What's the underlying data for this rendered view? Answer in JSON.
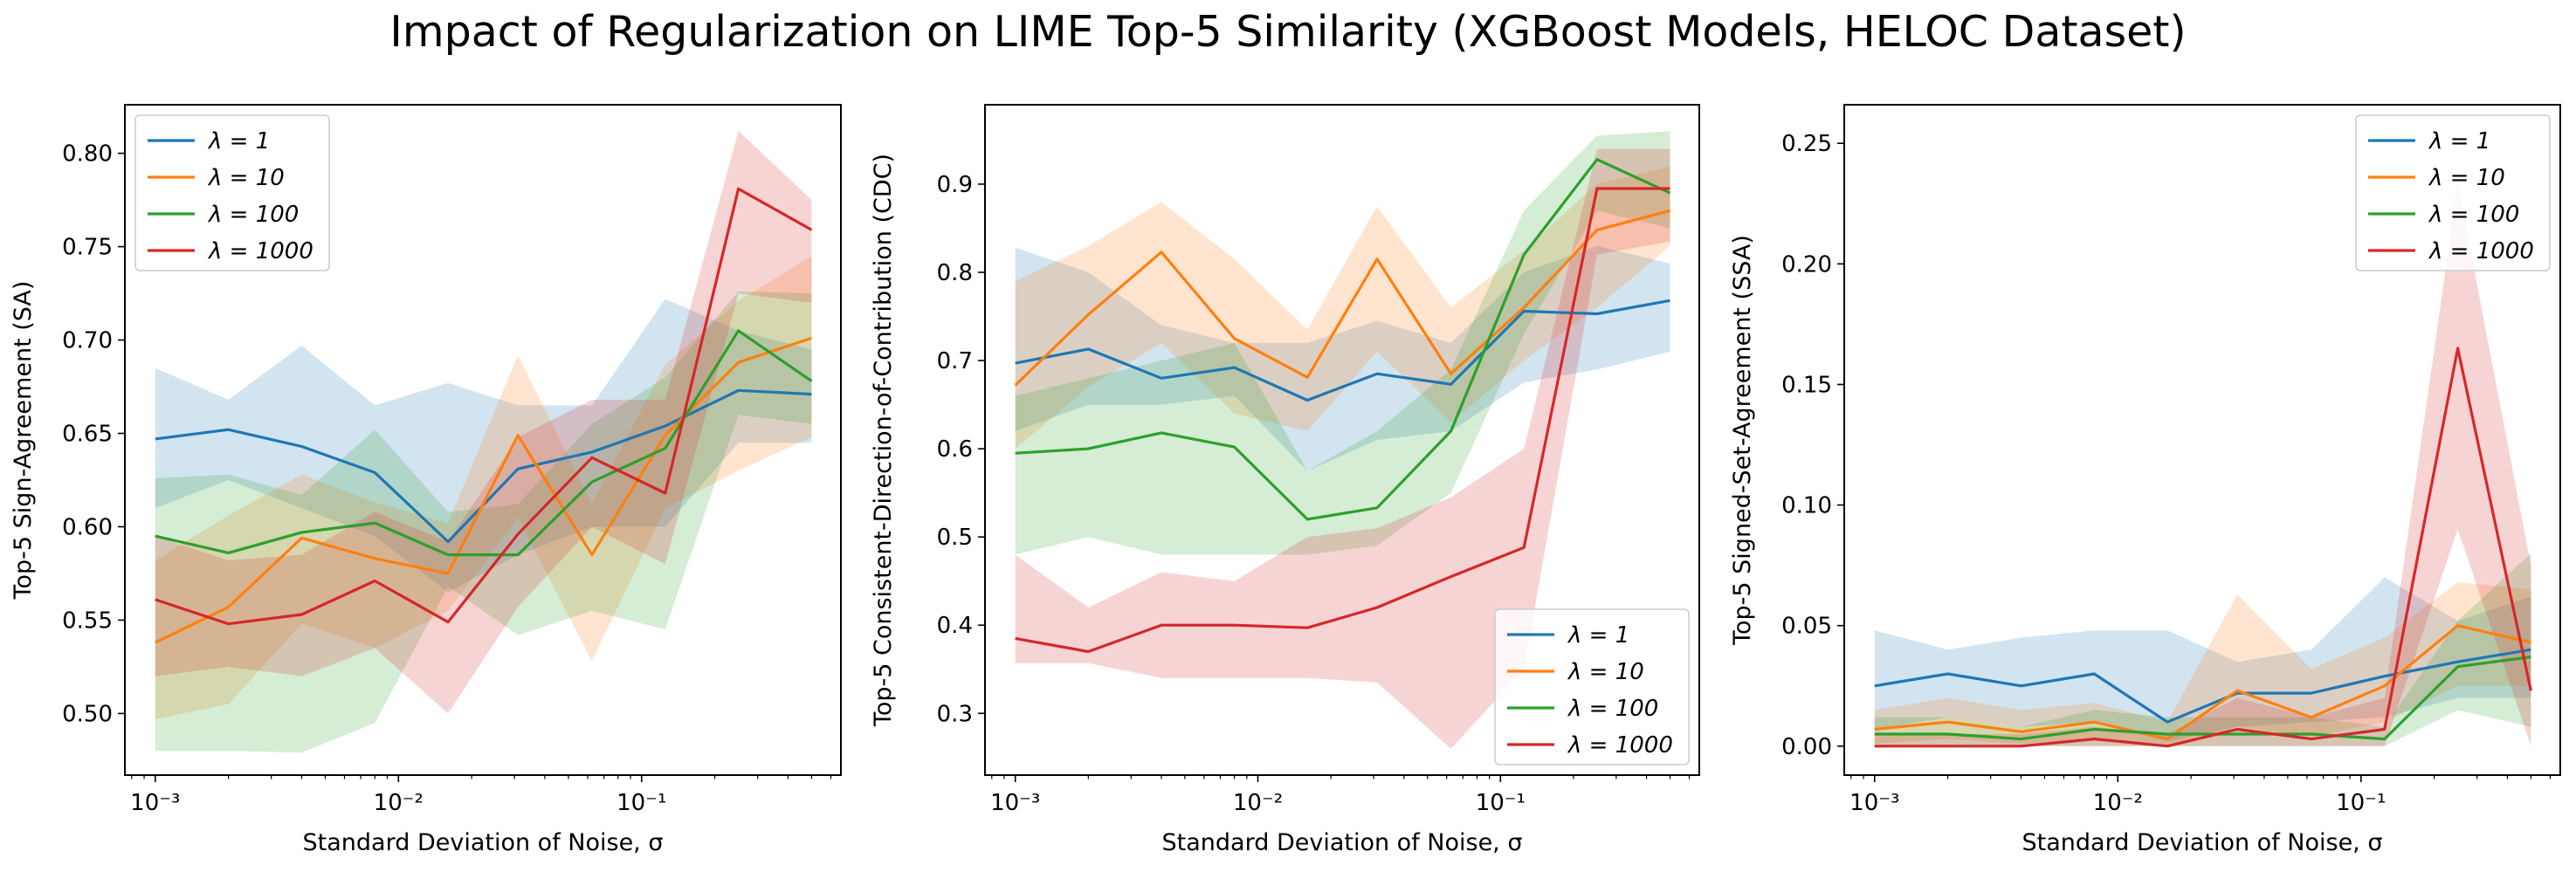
{
  "title": "Impact of Regularization on LIME Top-5 Similarity (XGBoost Models, HELOC Dataset)",
  "colors": {
    "lambda_1": "#1f77b4",
    "lambda_10": "#ff7f0e",
    "lambda_100": "#2ca02c",
    "lambda_1000": "#d62728"
  },
  "chart_data": [
    {
      "type": "line",
      "title": "",
      "xlabel": "Standard Deviation of Noise, σ",
      "ylabel": "Top-5 Sign-Agreement (SA)",
      "xscale": "log",
      "xlim": [
        0.00075,
        0.66
      ],
      "ylim": [
        0.467,
        0.826
      ],
      "x": [
        0.001,
        0.002,
        0.004,
        0.008,
        0.016,
        0.031,
        0.0625,
        0.125,
        0.25,
        0.5
      ],
      "xticks": [
        {
          "value": 0.001,
          "label": "10⁻³"
        },
        {
          "value": 0.01,
          "label": "10⁻²"
        },
        {
          "value": 0.1,
          "label": "10⁻¹"
        }
      ],
      "yticks": [
        {
          "value": 0.5,
          "label": "0.50"
        },
        {
          "value": 0.55,
          "label": "0.55"
        },
        {
          "value": 0.6,
          "label": "0.60"
        },
        {
          "value": 0.65,
          "label": "0.65"
        },
        {
          "value": 0.7,
          "label": "0.70"
        },
        {
          "value": 0.75,
          "label": "0.75"
        },
        {
          "value": 0.8,
          "label": "0.80"
        }
      ],
      "legend_position": "upper left",
      "series": [
        {
          "name": "λ = 1",
          "color": "#1f77b4",
          "values": [
            0.647,
            0.652,
            0.643,
            0.629,
            0.592,
            0.631,
            0.64,
            0.654,
            0.673,
            0.671
          ],
          "lower": [
            0.61,
            0.625,
            0.61,
            0.595,
            0.565,
            0.585,
            0.6,
            0.6,
            0.645,
            0.645
          ],
          "upper": [
            0.685,
            0.668,
            0.697,
            0.665,
            0.677,
            0.665,
            0.665,
            0.722,
            0.705,
            0.695
          ]
        },
        {
          "name": "λ = 10",
          "color": "#ff7f0e",
          "values": [
            0.538,
            0.557,
            0.594,
            0.583,
            0.575,
            0.649,
            0.585,
            0.649,
            0.688,
            0.701
          ],
          "lower": [
            0.497,
            0.505,
            0.548,
            0.535,
            0.555,
            0.605,
            0.528,
            0.61,
            0.63,
            0.648
          ],
          "upper": [
            0.582,
            0.606,
            0.628,
            0.613,
            0.602,
            0.692,
            0.612,
            0.687,
            0.721,
            0.745
          ]
        },
        {
          "name": "λ = 100",
          "color": "#2ca02c",
          "values": [
            0.595,
            0.586,
            0.597,
            0.602,
            0.585,
            0.585,
            0.624,
            0.642,
            0.705,
            0.678
          ],
          "lower": [
            0.48,
            0.48,
            0.479,
            0.495,
            0.568,
            0.542,
            0.555,
            0.545,
            0.66,
            0.655
          ],
          "upper": [
            0.626,
            0.628,
            0.617,
            0.652,
            0.608,
            0.612,
            0.655,
            0.68,
            0.726,
            0.725
          ]
        },
        {
          "name": "λ = 1000",
          "color": "#d62728",
          "values": [
            0.561,
            0.548,
            0.553,
            0.571,
            0.549,
            0.596,
            0.637,
            0.618,
            0.781,
            0.759
          ],
          "lower": [
            0.52,
            0.525,
            0.52,
            0.535,
            0.5,
            0.557,
            0.6,
            0.58,
            0.725,
            0.72
          ],
          "upper": [
            0.595,
            0.582,
            0.585,
            0.608,
            0.592,
            0.648,
            0.668,
            0.668,
            0.812,
            0.775
          ]
        }
      ]
    },
    {
      "type": "line",
      "title": "",
      "xlabel": "Standard Deviation of Noise, σ",
      "ylabel": "Top-5 Consistent-Direction-of-Contribution (CDC)",
      "xscale": "log",
      "xlim": [
        0.00075,
        0.66
      ],
      "ylim": [
        0.23,
        0.99
      ],
      "x": [
        0.001,
        0.002,
        0.004,
        0.008,
        0.016,
        0.031,
        0.0625,
        0.125,
        0.25,
        0.5
      ],
      "xticks": [
        {
          "value": 0.001,
          "label": "10⁻³"
        },
        {
          "value": 0.01,
          "label": "10⁻²"
        },
        {
          "value": 0.1,
          "label": "10⁻¹"
        }
      ],
      "yticks": [
        {
          "value": 0.3,
          "label": "0.3"
        },
        {
          "value": 0.4,
          "label": "0.4"
        },
        {
          "value": 0.5,
          "label": "0.5"
        },
        {
          "value": 0.6,
          "label": "0.6"
        },
        {
          "value": 0.7,
          "label": "0.7"
        },
        {
          "value": 0.8,
          "label": "0.8"
        },
        {
          "value": 0.9,
          "label": "0.9"
        }
      ],
      "legend_position": "lower right",
      "series": [
        {
          "name": "λ = 1",
          "color": "#1f77b4",
          "values": [
            0.697,
            0.713,
            0.68,
            0.692,
            0.655,
            0.685,
            0.673,
            0.756,
            0.753,
            0.768
          ],
          "lower": [
            0.62,
            0.65,
            0.65,
            0.66,
            0.575,
            0.61,
            0.62,
            0.675,
            0.69,
            0.71
          ],
          "upper": [
            0.828,
            0.8,
            0.74,
            0.72,
            0.72,
            0.745,
            0.72,
            0.8,
            0.83,
            0.81
          ]
        },
        {
          "name": "λ = 10",
          "color": "#ff7f0e",
          "values": [
            0.672,
            0.752,
            0.823,
            0.725,
            0.681,
            0.815,
            0.685,
            0.76,
            0.848,
            0.87
          ],
          "lower": [
            0.6,
            0.67,
            0.72,
            0.64,
            0.62,
            0.71,
            0.63,
            0.7,
            0.76,
            0.83
          ],
          "upper": [
            0.79,
            0.83,
            0.88,
            0.815,
            0.735,
            0.875,
            0.76,
            0.825,
            0.9,
            0.92
          ]
        },
        {
          "name": "λ = 100",
          "color": "#2ca02c",
          "values": [
            0.595,
            0.6,
            0.618,
            0.602,
            0.52,
            0.533,
            0.62,
            0.82,
            0.928,
            0.89
          ],
          "lower": [
            0.48,
            0.5,
            0.48,
            0.48,
            0.48,
            0.49,
            0.55,
            0.73,
            0.87,
            0.85
          ],
          "upper": [
            0.66,
            0.68,
            0.7,
            0.72,
            0.575,
            0.62,
            0.69,
            0.87,
            0.955,
            0.96
          ]
        },
        {
          "name": "λ = 1000",
          "color": "#d62728",
          "values": [
            0.385,
            0.37,
            0.4,
            0.4,
            0.397,
            0.42,
            0.455,
            0.488,
            0.895,
            0.895
          ],
          "lower": [
            0.357,
            0.357,
            0.34,
            0.34,
            0.34,
            0.335,
            0.26,
            0.35,
            0.82,
            0.835
          ],
          "upper": [
            0.48,
            0.42,
            0.46,
            0.45,
            0.5,
            0.51,
            0.545,
            0.6,
            0.94,
            0.94
          ]
        }
      ]
    },
    {
      "type": "line",
      "title": "",
      "xlabel": "Standard Deviation of Noise, σ",
      "ylabel": "Top-5 Signed-Set-Agreement (SSA)",
      "xscale": "log",
      "xlim": [
        0.00075,
        0.66
      ],
      "ylim": [
        -0.012,
        0.266
      ],
      "x": [
        0.001,
        0.002,
        0.004,
        0.008,
        0.016,
        0.031,
        0.0625,
        0.125,
        0.25,
        0.5
      ],
      "xticks": [
        {
          "value": 0.001,
          "label": "10⁻³"
        },
        {
          "value": 0.01,
          "label": "10⁻²"
        },
        {
          "value": 0.1,
          "label": "10⁻¹"
        }
      ],
      "yticks": [
        {
          "value": 0.0,
          "label": "0.00"
        },
        {
          "value": 0.05,
          "label": "0.05"
        },
        {
          "value": 0.1,
          "label": "0.10"
        },
        {
          "value": 0.15,
          "label": "0.15"
        },
        {
          "value": 0.2,
          "label": "0.20"
        },
        {
          "value": 0.25,
          "label": "0.25"
        }
      ],
      "legend_position": "upper right",
      "series": [
        {
          "name": "λ = 1",
          "color": "#1f77b4",
          "values": [
            0.025,
            0.03,
            0.025,
            0.03,
            0.01,
            0.022,
            0.022,
            0.029,
            0.035,
            0.04
          ],
          "lower": [
            0.007,
            0.012,
            0.008,
            0.01,
            0.002,
            0.008,
            0.01,
            0.012,
            0.02,
            0.02
          ],
          "upper": [
            0.048,
            0.04,
            0.045,
            0.048,
            0.048,
            0.035,
            0.04,
            0.07,
            0.052,
            0.062
          ]
        },
        {
          "name": "λ = 10",
          "color": "#ff7f0e",
          "values": [
            0.007,
            0.01,
            0.006,
            0.01,
            0.003,
            0.023,
            0.012,
            0.025,
            0.05,
            0.043
          ],
          "lower": [
            0.001,
            0.003,
            0.001,
            0.003,
            0.0,
            0.008,
            0.004,
            0.01,
            0.025,
            0.025
          ],
          "upper": [
            0.015,
            0.02,
            0.015,
            0.018,
            0.01,
            0.063,
            0.032,
            0.045,
            0.068,
            0.065
          ]
        },
        {
          "name": "λ = 100",
          "color": "#2ca02c",
          "values": [
            0.005,
            0.005,
            0.003,
            0.007,
            0.005,
            0.005,
            0.005,
            0.003,
            0.033,
            0.037
          ],
          "lower": [
            0.0,
            0.0,
            0.0,
            0.0,
            0.0,
            0.0,
            0.0,
            0.0,
            0.015,
            0.008
          ],
          "upper": [
            0.012,
            0.012,
            0.008,
            0.015,
            0.012,
            0.012,
            0.012,
            0.008,
            0.052,
            0.08
          ]
        },
        {
          "name": "λ = 1000",
          "color": "#d62728",
          "values": [
            0.0,
            0.0,
            0.0,
            0.003,
            0.0,
            0.007,
            0.003,
            0.007,
            0.165,
            0.023
          ],
          "lower": [
            0.0,
            0.0,
            0.0,
            0.0,
            0.0,
            0.0,
            0.0,
            0.0,
            0.09,
            0.0
          ],
          "upper": [
            0.005,
            0.005,
            0.005,
            0.008,
            0.005,
            0.02,
            0.012,
            0.02,
            0.233,
            0.075
          ]
        }
      ]
    }
  ]
}
